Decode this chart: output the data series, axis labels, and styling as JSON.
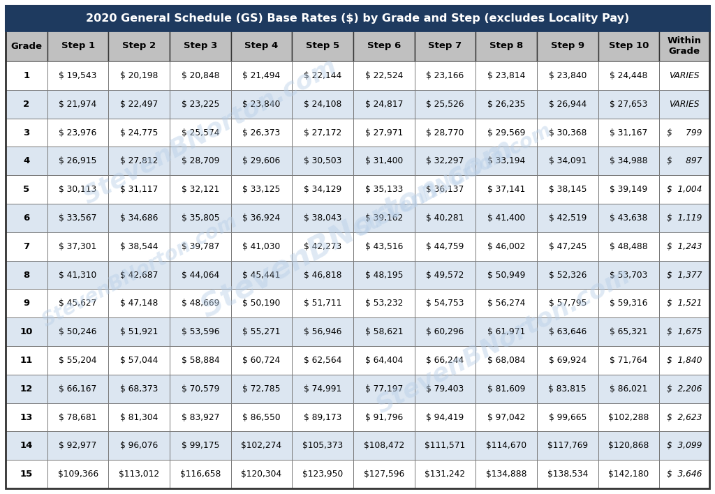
{
  "title": "2020 General Schedule (GS) Base Rates ($) by Grade and Step (excludes Locality Pay)",
  "title_bg": "#1e3a5f",
  "title_color": "#ffffff",
  "header_bg": "#c0c0c0",
  "header_color": "#000000",
  "col_headers": [
    "Grade",
    "Step 1",
    "Step 2",
    "Step 3",
    "Step 4",
    "Step 5",
    "Step 6",
    "Step 7",
    "Step 8",
    "Step 9",
    "Step 10",
    "Within\nGrade"
  ],
  "row_bg_even": "#dce6f1",
  "row_bg_odd": "#ffffff",
  "rows": [
    [
      "1",
      "$ 19,543",
      "$ 20,198",
      "$ 20,848",
      "$ 21,494",
      "$ 22,144",
      "$ 22,524",
      "$ 23,166",
      "$ 23,814",
      "$ 23,840",
      "$ 24,448",
      "VARIES"
    ],
    [
      "2",
      "$ 21,974",
      "$ 22,497",
      "$ 23,225",
      "$ 23,840",
      "$ 24,108",
      "$ 24,817",
      "$ 25,526",
      "$ 26,235",
      "$ 26,944",
      "$ 27,653",
      "VARIES"
    ],
    [
      "3",
      "$ 23,976",
      "$ 24,775",
      "$ 25,574",
      "$ 26,373",
      "$ 27,172",
      "$ 27,971",
      "$ 28,770",
      "$ 29,569",
      "$ 30,368",
      "$ 31,167",
      "$     799"
    ],
    [
      "4",
      "$ 26,915",
      "$ 27,812",
      "$ 28,709",
      "$ 29,606",
      "$ 30,503",
      "$ 31,400",
      "$ 32,297",
      "$ 33,194",
      "$ 34,091",
      "$ 34,988",
      "$     897"
    ],
    [
      "5",
      "$ 30,113",
      "$ 31,117",
      "$ 32,121",
      "$ 33,125",
      "$ 34,129",
      "$ 35,133",
      "$ 36,137",
      "$ 37,141",
      "$ 38,145",
      "$ 39,149",
      "$  1,004"
    ],
    [
      "6",
      "$ 33,567",
      "$ 34,686",
      "$ 35,805",
      "$ 36,924",
      "$ 38,043",
      "$ 39,162",
      "$ 40,281",
      "$ 41,400",
      "$ 42,519",
      "$ 43,638",
      "$  1,119"
    ],
    [
      "7",
      "$ 37,301",
      "$ 38,544",
      "$ 39,787",
      "$ 41,030",
      "$ 42,273",
      "$ 43,516",
      "$ 44,759",
      "$ 46,002",
      "$ 47,245",
      "$ 48,488",
      "$  1,243"
    ],
    [
      "8",
      "$ 41,310",
      "$ 42,687",
      "$ 44,064",
      "$ 45,441",
      "$ 46,818",
      "$ 48,195",
      "$ 49,572",
      "$ 50,949",
      "$ 52,326",
      "$ 53,703",
      "$  1,377"
    ],
    [
      "9",
      "$ 45,627",
      "$ 47,148",
      "$ 48,669",
      "$ 50,190",
      "$ 51,711",
      "$ 53,232",
      "$ 54,753",
      "$ 56,274",
      "$ 57,795",
      "$ 59,316",
      "$  1,521"
    ],
    [
      "10",
      "$ 50,246",
      "$ 51,921",
      "$ 53,596",
      "$ 55,271",
      "$ 56,946",
      "$ 58,621",
      "$ 60,296",
      "$ 61,971",
      "$ 63,646",
      "$ 65,321",
      "$  1,675"
    ],
    [
      "11",
      "$ 55,204",
      "$ 57,044",
      "$ 58,884",
      "$ 60,724",
      "$ 62,564",
      "$ 64,404",
      "$ 66,244",
      "$ 68,084",
      "$ 69,924",
      "$ 71,764",
      "$  1,840"
    ],
    [
      "12",
      "$ 66,167",
      "$ 68,373",
      "$ 70,579",
      "$ 72,785",
      "$ 74,991",
      "$ 77,197",
      "$ 79,403",
      "$ 81,609",
      "$ 83,815",
      "$ 86,021",
      "$  2,206"
    ],
    [
      "13",
      "$ 78,681",
      "$ 81,304",
      "$ 83,927",
      "$ 86,550",
      "$ 89,173",
      "$ 91,796",
      "$ 94,419",
      "$ 97,042",
      "$ 99,665",
      "$102,288",
      "$  2,623"
    ],
    [
      "14",
      "$ 92,977",
      "$ 96,076",
      "$ 99,175",
      "$102,274",
      "$105,373",
      "$108,472",
      "$111,571",
      "$114,670",
      "$117,769",
      "$120,868",
      "$  3,099"
    ],
    [
      "15",
      "$109,366",
      "$113,012",
      "$116,658",
      "$120,304",
      "$123,950",
      "$127,596",
      "$131,242",
      "$134,888",
      "$138,534",
      "$142,180",
      "$  3,646"
    ]
  ],
  "within_grade_italic": [
    true,
    true,
    false,
    false,
    false,
    false,
    false,
    false,
    false,
    false,
    false,
    false,
    false,
    false,
    false
  ],
  "watermark_text": "StevenBNorton.com",
  "border_color": "#1e3a5f",
  "outer_border_color": "#333333"
}
